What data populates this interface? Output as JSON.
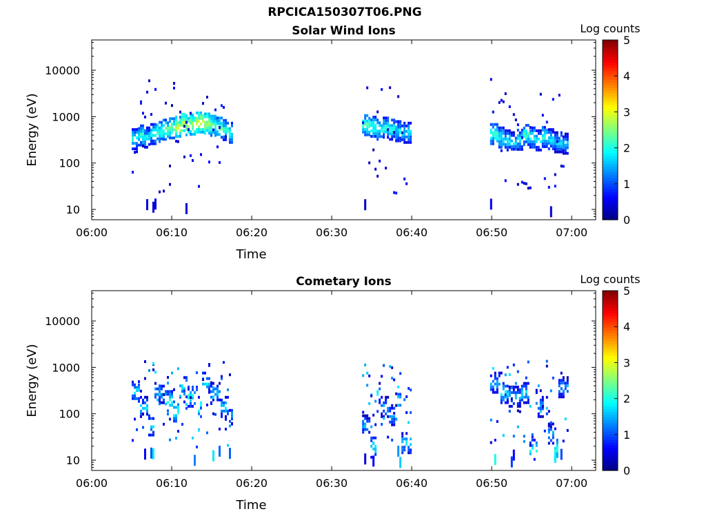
{
  "figure_title": "RPCICA150307T06.PNG",
  "colorbar": {
    "label": "Log counts",
    "ticks": [
      "0",
      "1",
      "2",
      "3",
      "4",
      "5"
    ],
    "range": [
      0,
      5
    ],
    "colormap": "jet"
  },
  "chart_data": [
    {
      "type": "heatmap",
      "title": "Solar Wind Ions",
      "xlabel": "Time",
      "ylabel": "Energy (eV)",
      "x_ticks": [
        "06:00",
        "06:10",
        "06:20",
        "06:30",
        "06:40",
        "06:50",
        "07:00"
      ],
      "x_range_minutes": [
        0,
        63
      ],
      "y_scale": "log",
      "y_ticks": [
        "10",
        "100",
        "1000",
        "10000"
      ],
      "y_range": [
        6,
        45000
      ],
      "grid": false,
      "data_intervals": [
        {
          "start": "06:05",
          "end": "06:17.5"
        },
        {
          "start": "06:33.8",
          "end": "06:39.8"
        },
        {
          "start": "06:49.8",
          "end": "06:59.5"
        }
      ],
      "band": [
        {
          "t": 5.2,
          "e": 350,
          "v": 2.0
        },
        {
          "t": 6.0,
          "e": 420,
          "v": 2.1
        },
        {
          "t": 6.8,
          "e": 380,
          "v": 1.9
        },
        {
          "t": 7.6,
          "e": 450,
          "v": 2.0
        },
        {
          "t": 8.4,
          "e": 500,
          "v": 2.2
        },
        {
          "t": 9.2,
          "e": 560,
          "v": 2.3
        },
        {
          "t": 10.0,
          "e": 600,
          "v": 2.5
        },
        {
          "t": 10.8,
          "e": 650,
          "v": 2.8
        },
        {
          "t": 11.2,
          "e": 750,
          "v": 3.0
        },
        {
          "t": 11.8,
          "e": 700,
          "v": 2.6
        },
        {
          "t": 12.6,
          "e": 720,
          "v": 2.7
        },
        {
          "t": 13.4,
          "e": 800,
          "v": 2.9
        },
        {
          "t": 14.2,
          "e": 760,
          "v": 2.8
        },
        {
          "t": 15.0,
          "e": 680,
          "v": 2.5
        },
        {
          "t": 15.8,
          "e": 620,
          "v": 2.4
        },
        {
          "t": 16.6,
          "e": 550,
          "v": 2.2
        },
        {
          "t": 17.3,
          "e": 480,
          "v": 2.0
        },
        {
          "t": 34.2,
          "e": 700,
          "v": 2.3
        },
        {
          "t": 35.0,
          "e": 650,
          "v": 2.2
        },
        {
          "t": 35.8,
          "e": 560,
          "v": 2.0
        },
        {
          "t": 36.6,
          "e": 620,
          "v": 2.1
        },
        {
          "t": 37.4,
          "e": 560,
          "v": 2.0
        },
        {
          "t": 38.2,
          "e": 520,
          "v": 1.9
        },
        {
          "t": 39.0,
          "e": 480,
          "v": 1.8
        },
        {
          "t": 50.2,
          "e": 450,
          "v": 2.2
        },
        {
          "t": 51.0,
          "e": 380,
          "v": 2.0
        },
        {
          "t": 51.8,
          "e": 330,
          "v": 1.9
        },
        {
          "t": 52.6,
          "e": 300,
          "v": 1.8
        },
        {
          "t": 53.4,
          "e": 340,
          "v": 1.9
        },
        {
          "t": 54.2,
          "e": 430,
          "v": 2.2
        },
        {
          "t": 55.0,
          "e": 380,
          "v": 2.0
        },
        {
          "t": 55.8,
          "e": 330,
          "v": 1.8
        },
        {
          "t": 56.6,
          "e": 390,
          "v": 2.1
        },
        {
          "t": 57.4,
          "e": 350,
          "v": 1.9
        },
        {
          "t": 58.2,
          "e": 300,
          "v": 1.7
        },
        {
          "t": 59.0,
          "e": 280,
          "v": 1.6
        }
      ]
    },
    {
      "type": "heatmap",
      "title": "Cometary Ions",
      "xlabel": "Time",
      "ylabel": "Energy (eV)",
      "x_ticks": [
        "06:00",
        "06:10",
        "06:20",
        "06:30",
        "06:40",
        "06:50",
        "07:00"
      ],
      "x_range_minutes": [
        0,
        63
      ],
      "y_scale": "log",
      "y_ticks": [
        "10",
        "100",
        "1000",
        "10000"
      ],
      "y_range": [
        6,
        45000
      ],
      "grid": false,
      "data_intervals": [
        {
          "start": "06:05",
          "end": "06:17.5"
        },
        {
          "start": "06:33.8",
          "end": "06:39.8"
        },
        {
          "start": "06:49.8",
          "end": "06:59.5"
        }
      ],
      "band": [
        {
          "t": 5.4,
          "e": 320,
          "v": 1.8
        },
        {
          "t": 6.6,
          "e": 150,
          "v": 1.7
        },
        {
          "t": 7.2,
          "e": 60,
          "v": 1.8
        },
        {
          "t": 8.2,
          "e": 300,
          "v": 1.6
        },
        {
          "t": 9.6,
          "e": 200,
          "v": 2.0
        },
        {
          "t": 10.4,
          "e": 120,
          "v": 2.2
        },
        {
          "t": 11.0,
          "e": 400,
          "v": 1.9
        },
        {
          "t": 12.8,
          "e": 250,
          "v": 2.0
        },
        {
          "t": 13.4,
          "e": 150,
          "v": 2.1
        },
        {
          "t": 14.0,
          "e": 500,
          "v": 1.8
        },
        {
          "t": 15.2,
          "e": 300,
          "v": 1.6
        },
        {
          "t": 16.6,
          "e": 150,
          "v": 1.8
        },
        {
          "t": 17.2,
          "e": 90,
          "v": 1.7
        },
        {
          "t": 34.2,
          "e": 60,
          "v": 1.5
        },
        {
          "t": 35.2,
          "e": 20,
          "v": 2.0
        },
        {
          "t": 35.6,
          "e": 300,
          "v": 1.8
        },
        {
          "t": 36.2,
          "e": 150,
          "v": 1.6
        },
        {
          "t": 37.8,
          "e": 100,
          "v": 1.6
        },
        {
          "t": 38.4,
          "e": 200,
          "v": 2.0
        },
        {
          "t": 38.8,
          "e": 25,
          "v": 1.8
        },
        {
          "t": 50.4,
          "e": 500,
          "v": 1.6
        },
        {
          "t": 51.4,
          "e": 300,
          "v": 1.9
        },
        {
          "t": 52.6,
          "e": 250,
          "v": 1.6
        },
        {
          "t": 54.6,
          "e": 300,
          "v": 1.8
        },
        {
          "t": 54.8,
          "e": 18,
          "v": 2.0
        },
        {
          "t": 56.2,
          "e": 150,
          "v": 1.6
        },
        {
          "t": 57.6,
          "e": 40,
          "v": 1.7
        },
        {
          "t": 57.8,
          "e": 18,
          "v": 2.1
        },
        {
          "t": 58.6,
          "e": 400,
          "v": 1.5
        }
      ]
    }
  ]
}
